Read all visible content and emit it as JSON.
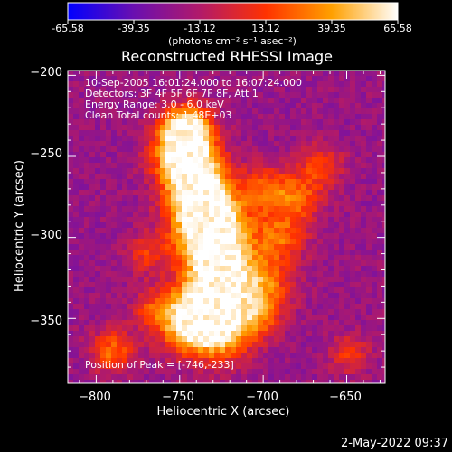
{
  "colorbar": {
    "tick_labels": [
      "-65.58",
      "-39.35",
      "-13.12",
      "13.12",
      "39.35",
      "65.58"
    ],
    "unit_label": "(photons cm⁻² s⁻¹ asec⁻²)"
  },
  "annotations": {
    "time_range": "10-Sep-2005 16:01:24.000 to 16:07:24.000",
    "detectors": "Detectors: 3F 4F 5F 6F 7F 8F, Att 1",
    "energy": "Energy Range: 3.0 - 6.0 keV",
    "clean": "Clean    Total counts: 1.48E+03",
    "peak": "Position of Peak = [-746,-233]"
  },
  "footer": {
    "timestamp": "2-May-2022 09:37"
  },
  "chart_data": {
    "type": "heatmap",
    "title": "Reconstructed RHESSI Image",
    "xlabel": "Heliocentric X (arcsec)",
    "ylabel": "Heliocentric Y (arcsec)",
    "xlim": [
      -817,
      -627
    ],
    "ylim": [
      -390,
      -197
    ],
    "x_ticks": [
      -800,
      -750,
      -700,
      -650
    ],
    "y_ticks": [
      -200,
      -250,
      -300,
      -350
    ],
    "x_tick_labels": [
      "−800",
      "−750",
      "−700",
      "−650"
    ],
    "y_tick_labels": [
      "−200",
      "−250",
      "−300",
      "−350"
    ],
    "colorbar_range": [
      -65.58,
      65.58
    ],
    "colormap_stops": [
      "#0000ff",
      "#6a0fb0",
      "#b11a6a",
      "#ff3200",
      "#ffa000",
      "#ffffff"
    ],
    "peak_position": [
      -746,
      -233
    ]
  }
}
